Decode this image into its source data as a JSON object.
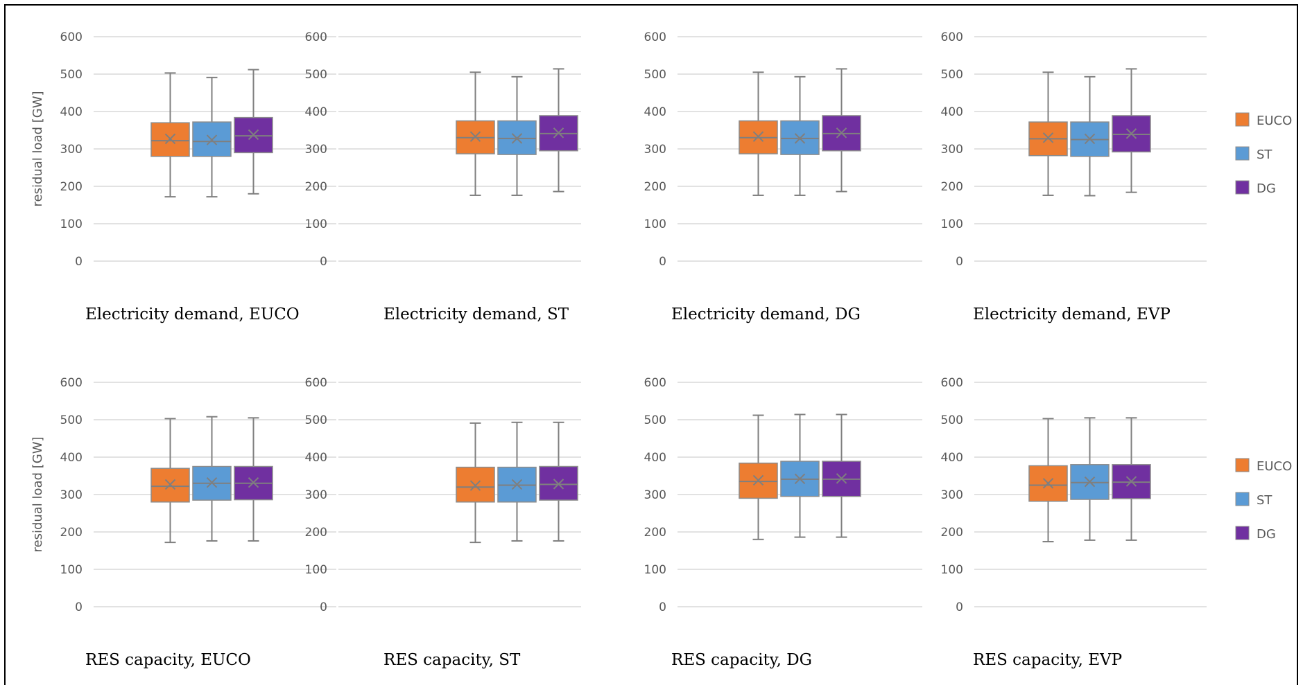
{
  "chart_data": {
    "type": "boxplot",
    "y_axis": {
      "label": "residual load [GW]",
      "ticks": [
        0,
        100,
        200,
        300,
        400,
        500,
        600
      ],
      "ylim": [
        0,
        600
      ]
    },
    "grid": true,
    "legend_placement": "right",
    "series": [
      {
        "name": "EUCO",
        "color": "#ed7d31"
      },
      {
        "name": "ST",
        "color": "#5b9bd5"
      },
      {
        "name": "DG",
        "color": "#7030a0"
      }
    ],
    "panels": [
      {
        "row": 0,
        "col": 0,
        "caption": "Electricity demand, EUCO",
        "ylabel": "residual load [GW]",
        "legend": false,
        "boxes": [
          {
            "series": "EUCO",
            "min": 172,
            "q1": 280,
            "median": 322,
            "q3": 370,
            "max": 503,
            "mean": 327
          },
          {
            "series": "ST",
            "min": 172,
            "q1": 280,
            "median": 320,
            "q3": 372,
            "max": 491,
            "mean": 324
          },
          {
            "series": "DG",
            "min": 180,
            "q1": 290,
            "median": 335,
            "q3": 384,
            "max": 512,
            "mean": 338
          }
        ]
      },
      {
        "row": 0,
        "col": 1,
        "caption": "Electricity demand, ST",
        "ylabel": "",
        "legend": false,
        "boxes": [
          {
            "series": "EUCO",
            "min": 176,
            "q1": 287,
            "median": 330,
            "q3": 375,
            "max": 505,
            "mean": 333
          },
          {
            "series": "ST",
            "min": 176,
            "q1": 285,
            "median": 328,
            "q3": 375,
            "max": 493,
            "mean": 328
          },
          {
            "series": "DG",
            "min": 186,
            "q1": 295,
            "median": 341,
            "q3": 389,
            "max": 514,
            "mean": 343
          }
        ]
      },
      {
        "row": 0,
        "col": 2,
        "caption": "Electricity demand, DG",
        "ylabel": "",
        "legend": false,
        "boxes": [
          {
            "series": "EUCO",
            "min": 176,
            "q1": 287,
            "median": 330,
            "q3": 375,
            "max": 505,
            "mean": 333
          },
          {
            "series": "ST",
            "min": 176,
            "q1": 285,
            "median": 328,
            "q3": 375,
            "max": 493,
            "mean": 328
          },
          {
            "series": "DG",
            "min": 186,
            "q1": 295,
            "median": 341,
            "q3": 389,
            "max": 514,
            "mean": 343
          }
        ]
      },
      {
        "row": 0,
        "col": 3,
        "caption": "Electricity demand, EVP",
        "ylabel": "",
        "legend": true,
        "boxes": [
          {
            "series": "EUCO",
            "min": 176,
            "q1": 282,
            "median": 327,
            "q3": 372,
            "max": 505,
            "mean": 330
          },
          {
            "series": "ST",
            "min": 175,
            "q1": 280,
            "median": 325,
            "q3": 372,
            "max": 493,
            "mean": 327
          },
          {
            "series": "DG",
            "min": 184,
            "q1": 292,
            "median": 339,
            "q3": 389,
            "max": 514,
            "mean": 341
          }
        ]
      },
      {
        "row": 1,
        "col": 0,
        "caption": "RES capacity, EUCO",
        "ylabel": "residual load [GW]",
        "legend": false,
        "boxes": [
          {
            "series": "EUCO",
            "min": 172,
            "q1": 280,
            "median": 322,
            "q3": 370,
            "max": 503,
            "mean": 327
          },
          {
            "series": "ST",
            "min": 176,
            "q1": 285,
            "median": 330,
            "q3": 375,
            "max": 508,
            "mean": 332
          },
          {
            "series": "DG",
            "min": 176,
            "q1": 286,
            "median": 330,
            "q3": 375,
            "max": 505,
            "mean": 332
          }
        ]
      },
      {
        "row": 1,
        "col": 1,
        "caption": "RES capacity, ST",
        "ylabel": "",
        "legend": false,
        "boxes": [
          {
            "series": "EUCO",
            "min": 172,
            "q1": 280,
            "median": 320,
            "q3": 373,
            "max": 491,
            "mean": 324
          },
          {
            "series": "ST",
            "min": 176,
            "q1": 280,
            "median": 325,
            "q3": 373,
            "max": 493,
            "mean": 327
          },
          {
            "series": "DG",
            "min": 176,
            "q1": 285,
            "median": 327,
            "q3": 375,
            "max": 493,
            "mean": 328
          }
        ]
      },
      {
        "row": 1,
        "col": 2,
        "caption": "RES capacity, DG",
        "ylabel": "",
        "legend": false,
        "boxes": [
          {
            "series": "EUCO",
            "min": 180,
            "q1": 290,
            "median": 335,
            "q3": 384,
            "max": 512,
            "mean": 338
          },
          {
            "series": "ST",
            "min": 186,
            "q1": 295,
            "median": 341,
            "q3": 389,
            "max": 514,
            "mean": 342
          },
          {
            "series": "DG",
            "min": 186,
            "q1": 295,
            "median": 341,
            "q3": 389,
            "max": 514,
            "mean": 343
          }
        ]
      },
      {
        "row": 1,
        "col": 3,
        "caption": "RES capacity, EVP",
        "ylabel": "",
        "legend": true,
        "boxes": [
          {
            "series": "EUCO",
            "min": 174,
            "q1": 282,
            "median": 325,
            "q3": 377,
            "max": 503,
            "mean": 330
          },
          {
            "series": "ST",
            "min": 178,
            "q1": 287,
            "median": 332,
            "q3": 380,
            "max": 505,
            "mean": 334
          },
          {
            "series": "DG",
            "min": 178,
            "q1": 289,
            "median": 333,
            "q3": 380,
            "max": 505,
            "mean": 335
          }
        ]
      }
    ]
  }
}
